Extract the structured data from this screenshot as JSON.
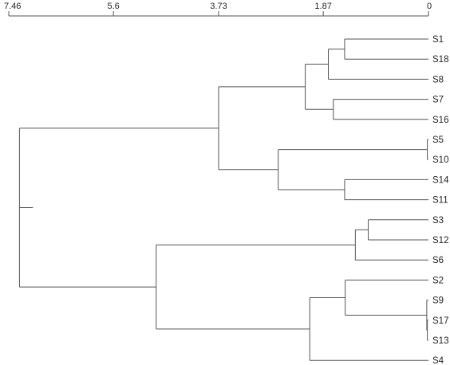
{
  "axis": {
    "ticks": [
      {
        "value": 7.46,
        "label": "7.46"
      },
      {
        "value": 5.6,
        "label": "5.6"
      },
      {
        "value": 3.73,
        "label": "3.73"
      },
      {
        "value": 1.87,
        "label": "1.87"
      },
      {
        "value": 0,
        "label": "0"
      }
    ],
    "range": [
      7.46,
      0
    ]
  },
  "leaves": [
    "S1",
    "S18",
    "S8",
    "S7",
    "S16",
    "S5",
    "S10",
    "S14",
    "S11",
    "S3",
    "S12",
    "S6",
    "S2",
    "S9",
    "S17",
    "S13",
    "S4"
  ],
  "merges": [
    {
      "id": "m1",
      "children": [
        "S1",
        "S18"
      ],
      "height": 1.49
    },
    {
      "id": "m2",
      "children": [
        "m1",
        "S8"
      ],
      "height": 1.78
    },
    {
      "id": "m3",
      "children": [
        "S7",
        "S16"
      ],
      "height": 1.69
    },
    {
      "id": "m4",
      "children": [
        "m2",
        "m3"
      ],
      "height": 2.19
    },
    {
      "id": "m5",
      "children": [
        "S5",
        "S10"
      ],
      "height": 0.02
    },
    {
      "id": "m6",
      "children": [
        "S14",
        "S11"
      ],
      "height": 1.49
    },
    {
      "id": "m7",
      "children": [
        "m5",
        "m6"
      ],
      "height": 2.67
    },
    {
      "id": "m8",
      "children": [
        "m4",
        "m7"
      ],
      "height": 3.73
    },
    {
      "id": "m9",
      "children": [
        "S3",
        "S12"
      ],
      "height": 1.07
    },
    {
      "id": "m10",
      "children": [
        "m9",
        "S6"
      ],
      "height": 1.3
    },
    {
      "id": "m11",
      "children": [
        "S17",
        "S13"
      ],
      "height": 0.02
    },
    {
      "id": "m12",
      "children": [
        "S9",
        "m11"
      ],
      "height": 0.03
    },
    {
      "id": "m13",
      "children": [
        "S2",
        "m12"
      ],
      "height": 1.48
    },
    {
      "id": "m14",
      "children": [
        "m13",
        "S4"
      ],
      "height": 2.11
    },
    {
      "id": "m15",
      "children": [
        "m10",
        "m14"
      ],
      "height": 4.84
    },
    {
      "id": "m16",
      "children": [
        "m8",
        "m15"
      ],
      "height": 7.27
    }
  ],
  "root": {
    "id": "m16",
    "stub_to": 7.03
  }
}
